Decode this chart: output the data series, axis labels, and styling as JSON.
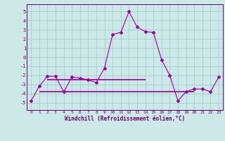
{
  "x": [
    0,
    1,
    2,
    3,
    4,
    5,
    6,
    7,
    8,
    9,
    10,
    11,
    12,
    13,
    14,
    15,
    16,
    17,
    18,
    19,
    20,
    21,
    22,
    23
  ],
  "y": [
    -4.8,
    -3.2,
    -2.1,
    -2.1,
    -3.8,
    -2.2,
    -2.3,
    -2.5,
    -2.8,
    -1.2,
    2.5,
    2.7,
    5.0,
    3.3,
    2.8,
    2.7,
    -0.3,
    -2.0,
    -4.8,
    -3.8,
    -3.5,
    -3.5,
    -3.8,
    -2.2
  ],
  "hline1_y": -2.5,
  "hline1_xstart": 2,
  "hline1_xend": 14,
  "hline2_y": -3.8,
  "hline2_xstart": 1,
  "hline2_xend": 14,
  "hline2_xstart2": 14,
  "hline2_xend2": 20,
  "line_color": "#990099",
  "bg_color": "#cce8e8",
  "grid_color": "#aacccc",
  "text_color": "#660066",
  "xlabel": "Windchill (Refroidissement éolien,°C)",
  "ylim": [
    -5.8,
    5.8
  ],
  "xlim": [
    -0.5,
    23.5
  ],
  "yticks": [
    -5,
    -4,
    -3,
    -2,
    -1,
    0,
    1,
    2,
    3,
    4,
    5
  ],
  "xticks": [
    0,
    1,
    2,
    3,
    4,
    5,
    6,
    7,
    8,
    9,
    10,
    11,
    12,
    13,
    14,
    15,
    16,
    17,
    18,
    19,
    20,
    21,
    22,
    23
  ]
}
